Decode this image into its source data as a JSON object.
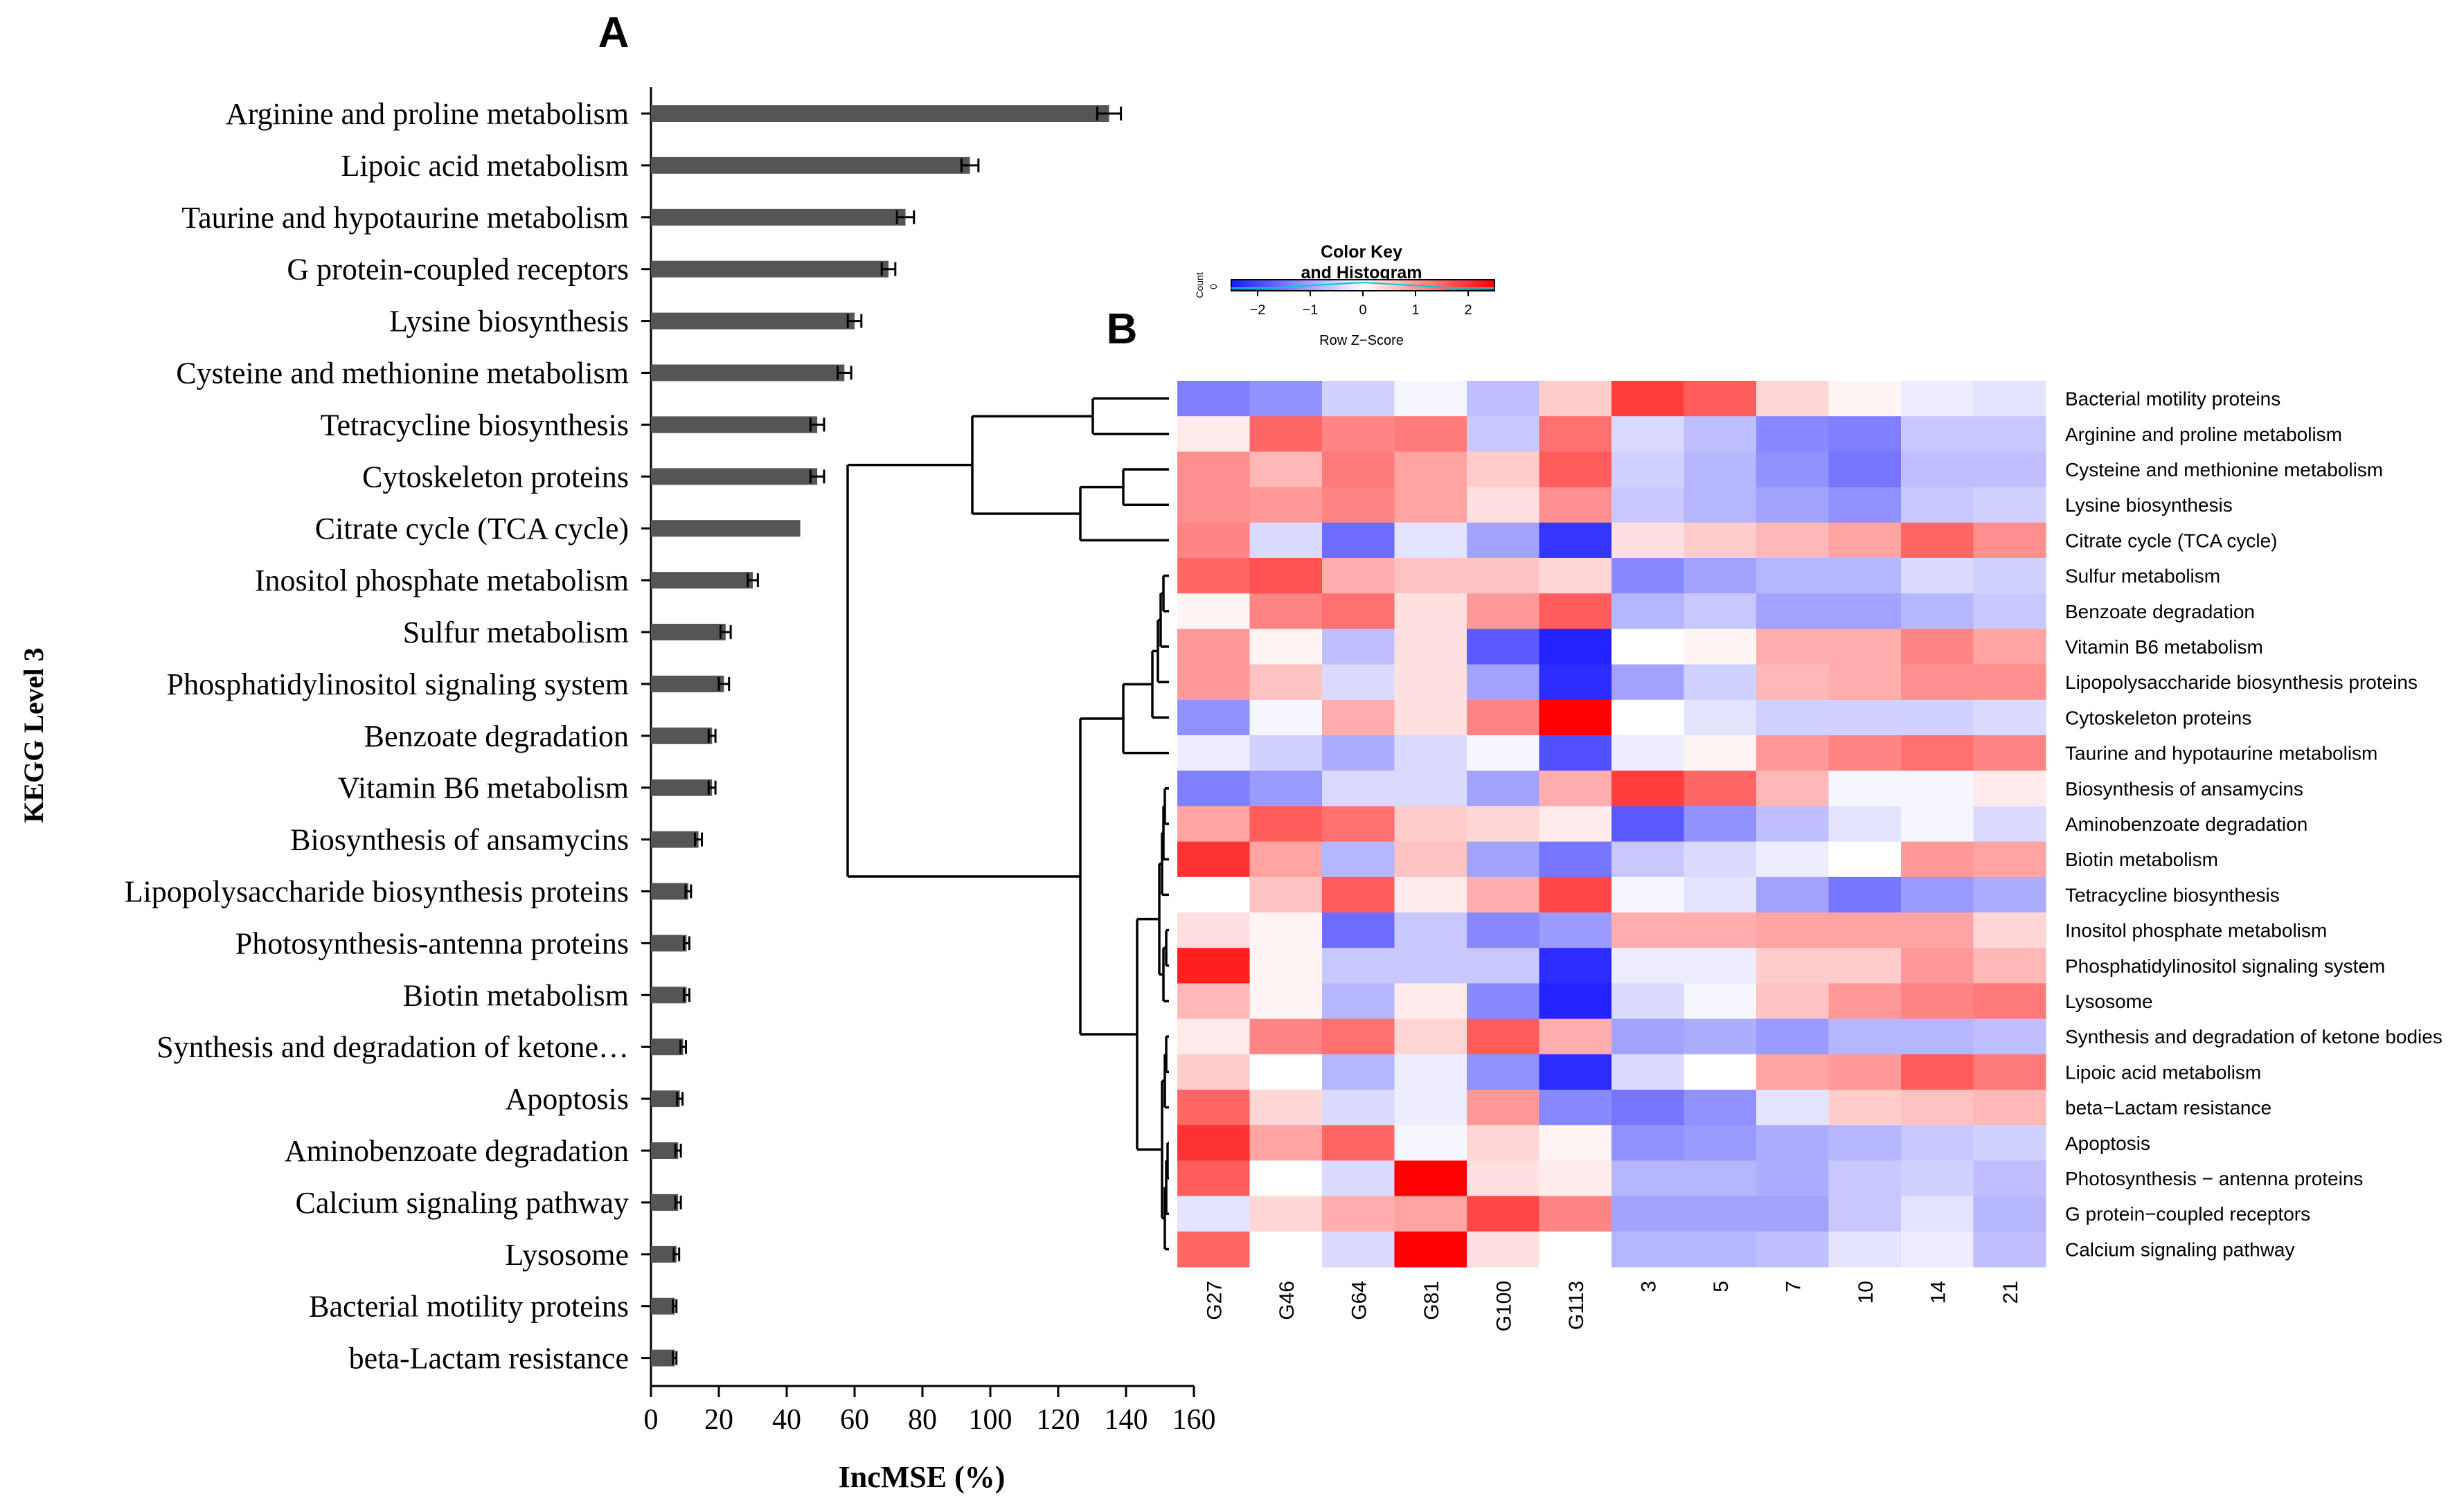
{
  "chart_data": [
    {
      "panel": "A",
      "type": "bar",
      "orientation": "horizontal",
      "ylabel": "KEGG Level 3",
      "xlabel": "IncMSE (%)",
      "xlim": [
        0,
        160
      ],
      "xticks": [
        "0",
        "20",
        "40",
        "60",
        "80",
        "100",
        "120",
        "140",
        "160"
      ],
      "grid": false,
      "bar_color": "#555555",
      "categories": [
        "Arginine and proline metabolism",
        "Lipoic acid metabolism",
        "Taurine and hypotaurine metabolism",
        "G protein-coupled receptors",
        "Lysine biosynthesis",
        "Cysteine and methionine metabolism",
        "Tetracycline biosynthesis",
        "Cytoskeleton proteins",
        "Citrate cycle (TCA cycle)",
        "Inositol phosphate metabolism",
        "Sulfur metabolism",
        "Phosphatidylinositol signaling system",
        "Benzoate degradation",
        "Vitamin B6 metabolism",
        "Biosynthesis of ansamycins",
        "Lipopolysaccharide biosynthesis proteins",
        "Photosynthesis-antenna proteins",
        "Biotin metabolism",
        "Synthesis and degradation of ketone…",
        "Apoptosis",
        "Aminobenzoate degradation",
        "Calcium signaling pathway",
        "Lysosome",
        "Bacterial motility proteins",
        "beta-Lactam resistance"
      ],
      "values": [
        135,
        94,
        75,
        70,
        60,
        57,
        49,
        49,
        44,
        30,
        22,
        21.5,
        18,
        18,
        14,
        11,
        10.5,
        10.5,
        9.5,
        8.5,
        8,
        8,
        7.5,
        7,
        7
      ],
      "errors": [
        3.5,
        2.5,
        2.5,
        2,
        2,
        2,
        2,
        2,
        0,
        1.5,
        1.5,
        1.5,
        1,
        1,
        1,
        0.8,
        0.8,
        0.8,
        0.8,
        0.8,
        0.8,
        0.8,
        0.8,
        0.5,
        0.5
      ]
    },
    {
      "panel": "B",
      "type": "heatmap",
      "color_key_title": [
        "Color Key",
        "and Histogram"
      ],
      "color_key_xlabel": "Row Z−Score",
      "color_key_ylabel": "Count",
      "color_key_yticks": [
        "0"
      ],
      "color_key_ticks": [
        "−2",
        "−1",
        "0",
        "1",
        "2"
      ],
      "zlim": [
        -2.5,
        2.5
      ],
      "colors": {
        "low": "#1a1aff",
        "mid": "#ffffff",
        "high": "#ff0000"
      },
      "columns": [
        "G27",
        "G46",
        "G64",
        "G81",
        "G100",
        "G113",
        "3",
        "5",
        "7",
        "10",
        "14",
        "21"
      ],
      "rows": [
        "Bacterial motility proteins",
        "Arginine and proline metabolism",
        "Cysteine and methionine metabolism",
        "Lysine biosynthesis",
        "Citrate cycle (TCA cycle)",
        "Sulfur metabolism",
        "Benzoate degradation",
        "Vitamin B6 metabolism",
        "Lipopolysaccharide biosynthesis proteins",
        "Cytoskeleton proteins",
        "Taurine and hypotaurine metabolism",
        "Biosynthesis of ansamycins",
        "Aminobenzoate degradation",
        "Biotin metabolism",
        "Tetracycline biosynthesis",
        "Inositol phosphate metabolism",
        "Phosphatidylinositol signaling system",
        "Lysosome",
        "Synthesis and degradation of ketone bodies",
        "Lipoic acid metabolism",
        "beta−Lactam resistance",
        "Apoptosis",
        "Photosynthesis − antenna proteins",
        "G protein−coupled receptors",
        "Calcium signaling pathway"
      ],
      "values": [
        [
          -1.4,
          -1.2,
          -0.5,
          -0.1,
          -0.7,
          0.5,
          1.9,
          1.6,
          0.4,
          0.1,
          -0.2,
          -0.3
        ],
        [
          0.2,
          1.5,
          1.2,
          1.3,
          -0.6,
          1.4,
          -0.4,
          -0.7,
          -1.3,
          -1.4,
          -0.6,
          -0.6
        ],
        [
          1.1,
          0.7,
          1.3,
          0.9,
          0.5,
          1.6,
          -0.5,
          -0.8,
          -1.2,
          -1.5,
          -0.7,
          -0.7
        ],
        [
          1.1,
          1.0,
          1.2,
          0.9,
          0.3,
          1.1,
          -0.6,
          -0.8,
          -1.0,
          -1.2,
          -0.6,
          -0.5
        ],
        [
          1.2,
          -0.4,
          -1.6,
          -0.3,
          -1.0,
          -2.2,
          0.3,
          0.5,
          0.7,
          0.9,
          1.5,
          1.1
        ],
        [
          1.5,
          1.7,
          0.8,
          0.6,
          0.6,
          0.4,
          -1.3,
          -1.0,
          -0.8,
          -0.8,
          -0.4,
          -0.5
        ],
        [
          0.1,
          1.2,
          1.4,
          0.3,
          1.0,
          1.6,
          -0.8,
          -0.6,
          -1.0,
          -1.0,
          -0.8,
          -0.6
        ],
        [
          1.0,
          0.1,
          -0.7,
          0.3,
          -1.8,
          -2.4,
          0.0,
          0.1,
          0.8,
          0.8,
          1.2,
          0.9
        ],
        [
          1.0,
          0.6,
          -0.4,
          0.3,
          -1.0,
          -2.3,
          -1.0,
          -0.5,
          0.7,
          0.8,
          1.1,
          1.1
        ],
        [
          -1.2,
          -0.1,
          0.8,
          0.3,
          1.2,
          2.5,
          0.0,
          -0.3,
          -0.5,
          -0.5,
          -0.5,
          -0.4
        ],
        [
          -0.2,
          -0.5,
          -0.9,
          -0.4,
          -0.1,
          -1.9,
          -0.2,
          0.1,
          1.0,
          1.2,
          1.4,
          1.2
        ],
        [
          -1.4,
          -1.1,
          -0.4,
          -0.4,
          -1.0,
          0.8,
          1.9,
          1.5,
          0.7,
          -0.1,
          -0.1,
          0.2
        ],
        [
          0.9,
          1.6,
          1.4,
          0.5,
          0.4,
          0.2,
          -1.8,
          -1.2,
          -0.7,
          -0.3,
          -0.1,
          -0.4
        ],
        [
          2.0,
          0.9,
          -0.8,
          0.6,
          -1.0,
          -1.5,
          -0.6,
          -0.4,
          -0.2,
          0.0,
          1.0,
          0.9
        ],
        [
          0.0,
          0.6,
          1.6,
          0.2,
          0.8,
          1.8,
          -0.1,
          -0.3,
          -1.0,
          -1.5,
          -1.1,
          -0.9
        ],
        [
          0.3,
          0.1,
          -1.6,
          -0.6,
          -1.3,
          -1.1,
          0.8,
          0.8,
          0.9,
          0.9,
          0.9,
          0.4
        ],
        [
          2.2,
          0.1,
          -0.6,
          -0.6,
          -0.6,
          -2.3,
          -0.2,
          -0.2,
          0.5,
          0.5,
          1.0,
          0.7
        ],
        [
          0.7,
          0.1,
          -0.8,
          0.2,
          -1.3,
          -2.4,
          -0.4,
          -0.1,
          0.6,
          1.0,
          1.2,
          1.3
        ],
        [
          0.2,
          1.2,
          1.4,
          0.4,
          1.6,
          0.8,
          -1.0,
          -0.9,
          -1.1,
          -0.8,
          -0.8,
          -0.7
        ],
        [
          0.5,
          0.0,
          -0.8,
          -0.2,
          -1.2,
          -2.3,
          -0.4,
          0.0,
          0.9,
          1.0,
          1.6,
          1.3
        ],
        [
          1.5,
          0.4,
          -0.4,
          -0.2,
          1.0,
          -1.3,
          -1.5,
          -1.2,
          -0.3,
          0.5,
          0.6,
          0.7
        ],
        [
          2.0,
          0.9,
          1.5,
          -0.1,
          0.4,
          0.1,
          -1.2,
          -1.1,
          -0.9,
          -0.8,
          -0.6,
          -0.5
        ],
        [
          1.6,
          0.0,
          -0.4,
          2.8,
          0.3,
          0.2,
          -0.8,
          -0.8,
          -0.9,
          -0.6,
          -0.5,
          -0.7
        ],
        [
          -0.3,
          0.4,
          0.8,
          0.9,
          1.8,
          1.2,
          -1.0,
          -1.0,
          -1.0,
          -0.6,
          -0.3,
          -0.8
        ],
        [
          1.5,
          0.0,
          -0.4,
          2.8,
          0.3,
          0.0,
          -0.8,
          -0.8,
          -0.7,
          -0.3,
          -0.2,
          -0.7
        ]
      ]
    }
  ],
  "panel_labels": {
    "a": "A",
    "b": "B"
  }
}
